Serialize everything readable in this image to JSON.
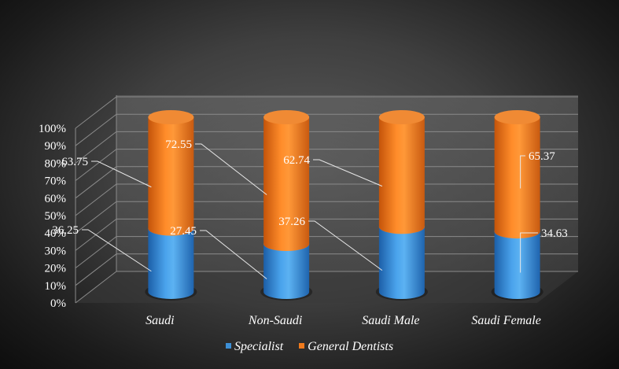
{
  "chart_data": {
    "type": "bar",
    "stacked": true,
    "percent_stacked": true,
    "style": "3d-cylinder",
    "categories": [
      "Saudi",
      "Non-Saudi",
      "Saudi Male",
      "Saudi Female"
    ],
    "series": [
      {
        "name": "Specialist",
        "values": [
          36.25,
          27.45,
          37.26,
          34.63
        ],
        "color": "#3d8fd6"
      },
      {
        "name": "General Dentists",
        "values": [
          63.75,
          72.55,
          62.74,
          65.37
        ],
        "color": "#f07a1c"
      }
    ],
    "y_ticks": [
      "0%",
      "10%",
      "20%",
      "30%",
      "40%",
      "50%",
      "60%",
      "70%",
      "80%",
      "90%",
      "100%"
    ],
    "ylim": [
      0,
      100
    ],
    "grid": true,
    "legend_position": "bottom"
  }
}
